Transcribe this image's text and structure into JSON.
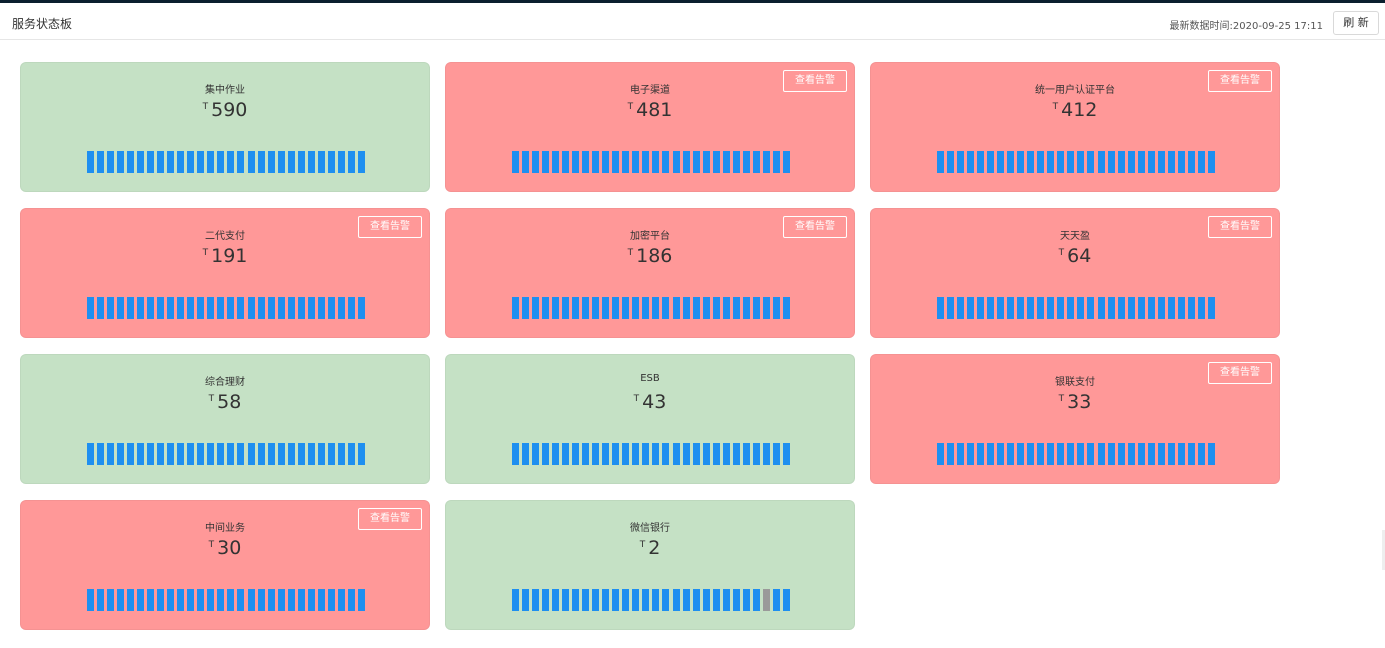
{
  "header": {
    "title": "服务状态板",
    "timestamp": "最新数据时间:2020-09-25 17:11",
    "refresh_label": "刷 新"
  },
  "colors": {
    "ok": "#c5e1c5",
    "alarm": "#ff9898",
    "bar": "#1e8ff0",
    "bar_off": "#9a9a9a"
  },
  "value_prefix": "T",
  "alarm_label": "查看告警",
  "cards": [
    {
      "name": "集中作业",
      "value": "590",
      "status": "ok",
      "alarm": false,
      "bars": 28,
      "grey_bars": []
    },
    {
      "name": "电子渠道",
      "value": "481",
      "status": "alarm",
      "alarm": true,
      "bars": 28,
      "grey_bars": []
    },
    {
      "name": "统一用户认证平台",
      "value": "412",
      "status": "alarm",
      "alarm": true,
      "bars": 28,
      "grey_bars": []
    },
    {
      "name": "二代支付",
      "value": "191",
      "status": "alarm",
      "alarm": true,
      "bars": 28,
      "grey_bars": []
    },
    {
      "name": "加密平台",
      "value": "186",
      "status": "alarm",
      "alarm": true,
      "bars": 28,
      "grey_bars": []
    },
    {
      "name": "天天盈",
      "value": "64",
      "status": "alarm",
      "alarm": true,
      "bars": 28,
      "grey_bars": []
    },
    {
      "name": "综合理财",
      "value": "58",
      "status": "ok",
      "alarm": false,
      "bars": 28,
      "grey_bars": []
    },
    {
      "name": "ESB",
      "value": "43",
      "status": "ok",
      "alarm": false,
      "bars": 28,
      "grey_bars": []
    },
    {
      "name": "银联支付",
      "value": "33",
      "status": "alarm",
      "alarm": true,
      "bars": 28,
      "grey_bars": []
    },
    {
      "name": "中间业务",
      "value": "30",
      "status": "alarm",
      "alarm": true,
      "bars": 28,
      "grey_bars": []
    },
    {
      "name": "微信银行",
      "value": "2",
      "status": "ok",
      "alarm": false,
      "bars": 28,
      "grey_bars": [
        25
      ]
    }
  ]
}
